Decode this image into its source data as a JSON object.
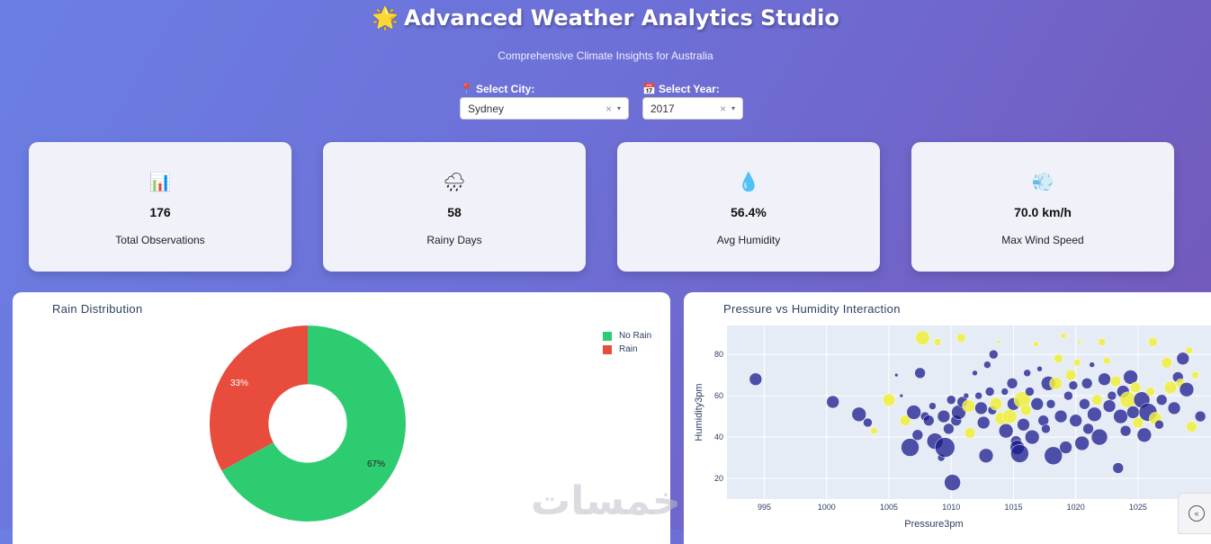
{
  "header": {
    "star": "🌟",
    "title": "Advanced Weather Analytics Studio",
    "subtitle": "Comprehensive Climate Insights for Australia"
  },
  "filters": {
    "city": {
      "icon": "📍",
      "label": "Select City:",
      "value": "Sydney",
      "clear": "×",
      "caret": "▾"
    },
    "year": {
      "icon": "📅",
      "label": "Select Year:",
      "value": "2017",
      "clear": "×",
      "caret": "▾"
    }
  },
  "kpis": [
    {
      "icon": "📊",
      "icon_name": "bar-chart-icon",
      "value": "176",
      "label": "Total Observations"
    },
    {
      "icon": "🌧",
      "icon_name": "rain-cloud-icon",
      "value": "58",
      "label": "Rainy Days"
    },
    {
      "icon": "💧",
      "icon_name": "droplet-icon",
      "value": "56.4%",
      "label": "Avg Humidity"
    },
    {
      "icon": "💨",
      "icon_name": "wind-icon",
      "value": "70.0 km/h",
      "label": "Max Wind Speed"
    }
  ],
  "rain_panel": {
    "title": "Rain Distribution"
  },
  "scatter_panel": {
    "title": "Pressure vs Humidity Interaction"
  },
  "watermark": "خمسات",
  "chart_data": [
    {
      "type": "pie",
      "title": "Rain Distribution",
      "hole": 0.4,
      "slices": [
        {
          "label": "No Rain",
          "value": 67,
          "text": "67%",
          "color": "#2ecc71"
        },
        {
          "label": "Rain",
          "value": 33,
          "text": "33%",
          "color": "#e74c3c"
        }
      ],
      "legend_placement": "top-right"
    },
    {
      "type": "scatter",
      "title": "Pressure vs Humidity Interaction",
      "xlabel": "Pressure3pm",
      "ylabel": "Humidity3pm",
      "xlim": [
        992,
        1031
      ],
      "ylim": [
        10,
        94
      ],
      "xticks": [
        "995",
        "1000",
        "1005",
        "1010",
        "1015",
        "1020",
        "1025"
      ],
      "yticks": [
        "20",
        "40",
        "60",
        "80"
      ],
      "grid": true,
      "colors": {
        "no_rain": "#1a1a8c",
        "rain": "#f0f03c"
      },
      "points": [
        [
          994.3,
          68,
          7,
          0
        ],
        [
          1000.5,
          57,
          7,
          0
        ],
        [
          1002.6,
          51,
          8,
          0
        ],
        [
          1003.3,
          47,
          5,
          0
        ],
        [
          1003.8,
          43,
          4,
          1
        ],
        [
          1005.0,
          58,
          7,
          1
        ],
        [
          1005.6,
          70,
          2,
          0
        ],
        [
          1006.0,
          60,
          2,
          0
        ],
        [
          1006.3,
          48,
          6,
          1
        ],
        [
          1006.7,
          35,
          10,
          0
        ],
        [
          1007.0,
          52,
          8,
          0
        ],
        [
          1007.3,
          41,
          6,
          0
        ],
        [
          1007.5,
          71,
          6,
          0
        ],
        [
          1007.7,
          88,
          8,
          1
        ],
        [
          1007.9,
          50,
          5,
          0
        ],
        [
          1008.2,
          48,
          6,
          0
        ],
        [
          1008.5,
          55,
          4,
          0
        ],
        [
          1008.7,
          38,
          9,
          0
        ],
        [
          1008.9,
          86,
          4,
          1
        ],
        [
          1009.2,
          30,
          4,
          0
        ],
        [
          1009.4,
          50,
          7,
          0
        ],
        [
          1009.5,
          35,
          11,
          0
        ],
        [
          1009.8,
          44,
          6,
          0
        ],
        [
          1010.0,
          58,
          5,
          0
        ],
        [
          1010.1,
          18,
          9,
          0
        ],
        [
          1010.4,
          48,
          6,
          0
        ],
        [
          1010.6,
          52,
          8,
          0
        ],
        [
          1010.8,
          88,
          5,
          1
        ],
        [
          1010.9,
          57,
          6,
          0
        ],
        [
          1011.2,
          60,
          3,
          0
        ],
        [
          1011.4,
          55,
          7,
          1
        ],
        [
          1011.5,
          42,
          6,
          1
        ],
        [
          1011.9,
          71,
          3,
          0
        ],
        [
          1012.2,
          60,
          4,
          0
        ],
        [
          1012.4,
          54,
          7,
          0
        ],
        [
          1012.6,
          47,
          7,
          0
        ],
        [
          1012.8,
          31,
          8,
          0
        ],
        [
          1012.9,
          75,
          4,
          0
        ],
        [
          1013.1,
          62,
          5,
          0
        ],
        [
          1013.3,
          53,
          5,
          0
        ],
        [
          1013.4,
          80,
          5,
          0
        ],
        [
          1013.6,
          56,
          7,
          1
        ],
        [
          1013.8,
          86,
          2,
          1
        ],
        [
          1014.0,
          49,
          7,
          1
        ],
        [
          1014.3,
          62,
          4,
          0
        ],
        [
          1014.4,
          43,
          8,
          0
        ],
        [
          1014.7,
          50,
          8,
          1
        ],
        [
          1014.9,
          66,
          6,
          0
        ],
        [
          1015.0,
          56,
          7,
          0
        ],
        [
          1015.2,
          38,
          6,
          0
        ],
        [
          1015.3,
          35,
          8,
          0
        ],
        [
          1015.5,
          32,
          10,
          0
        ],
        [
          1015.7,
          58,
          9,
          1
        ],
        [
          1015.8,
          46,
          7,
          0
        ],
        [
          1016.0,
          53,
          6,
          1
        ],
        [
          1016.1,
          71,
          4,
          0
        ],
        [
          1016.3,
          62,
          5,
          0
        ],
        [
          1016.5,
          40,
          8,
          0
        ],
        [
          1016.8,
          85,
          3,
          1
        ],
        [
          1016.9,
          56,
          7,
          0
        ],
        [
          1017.1,
          73,
          3,
          0
        ],
        [
          1017.4,
          48,
          6,
          0
        ],
        [
          1017.6,
          44,
          5,
          0
        ],
        [
          1017.8,
          66,
          8,
          0
        ],
        [
          1018.0,
          56,
          5,
          0
        ],
        [
          1018.2,
          31,
          10,
          0
        ],
        [
          1018.4,
          66,
          7,
          1
        ],
        [
          1018.6,
          78,
          5,
          1
        ],
        [
          1018.8,
          50,
          7,
          0
        ],
        [
          1019.0,
          89,
          3,
          1
        ],
        [
          1019.2,
          35,
          7,
          0
        ],
        [
          1019.4,
          60,
          5,
          0
        ],
        [
          1019.6,
          70,
          6,
          1
        ],
        [
          1019.8,
          65,
          5,
          0
        ],
        [
          1020.0,
          48,
          7,
          0
        ],
        [
          1020.1,
          76,
          4,
          1
        ],
        [
          1020.3,
          86,
          2,
          1
        ],
        [
          1020.5,
          37,
          8,
          0
        ],
        [
          1020.7,
          56,
          6,
          0
        ],
        [
          1020.9,
          66,
          6,
          0
        ],
        [
          1021.0,
          44,
          6,
          0
        ],
        [
          1021.3,
          75,
          3,
          0
        ],
        [
          1021.5,
          51,
          8,
          0
        ],
        [
          1021.7,
          58,
          6,
          1
        ],
        [
          1021.9,
          40,
          9,
          0
        ],
        [
          1022.1,
          86,
          4,
          1
        ],
        [
          1022.3,
          68,
          7,
          0
        ],
        [
          1022.5,
          77,
          4,
          1
        ],
        [
          1022.7,
          55,
          7,
          0
        ],
        [
          1022.9,
          60,
          5,
          0
        ],
        [
          1023.2,
          67,
          6,
          1
        ],
        [
          1023.4,
          25,
          6,
          0
        ],
        [
          1023.6,
          50,
          8,
          0
        ],
        [
          1023.8,
          62,
          7,
          0
        ],
        [
          1024.0,
          43,
          6,
          0
        ],
        [
          1024.2,
          58,
          9,
          1
        ],
        [
          1024.4,
          69,
          8,
          0
        ],
        [
          1024.6,
          52,
          7,
          0
        ],
        [
          1024.8,
          64,
          6,
          1
        ],
        [
          1025.0,
          47,
          6,
          1
        ],
        [
          1025.3,
          58,
          9,
          0
        ],
        [
          1025.5,
          41,
          8,
          0
        ],
        [
          1025.8,
          52,
          10,
          0
        ],
        [
          1026.0,
          62,
          5,
          1
        ],
        [
          1026.2,
          86,
          5,
          1
        ],
        [
          1026.4,
          49,
          7,
          1
        ],
        [
          1026.7,
          46,
          5,
          0
        ],
        [
          1026.9,
          58,
          6,
          0
        ],
        [
          1027.3,
          76,
          6,
          1
        ],
        [
          1027.6,
          64,
          7,
          1
        ],
        [
          1027.9,
          54,
          7,
          0
        ],
        [
          1028.2,
          69,
          6,
          0
        ],
        [
          1028.4,
          66,
          5,
          1
        ],
        [
          1028.6,
          78,
          7,
          0
        ],
        [
          1028.9,
          63,
          8,
          0
        ],
        [
          1029.1,
          82,
          4,
          1
        ],
        [
          1029.3,
          45,
          6,
          1
        ],
        [
          1029.6,
          70,
          4,
          1
        ],
        [
          1030.0,
          50,
          6,
          0
        ]
      ]
    }
  ]
}
